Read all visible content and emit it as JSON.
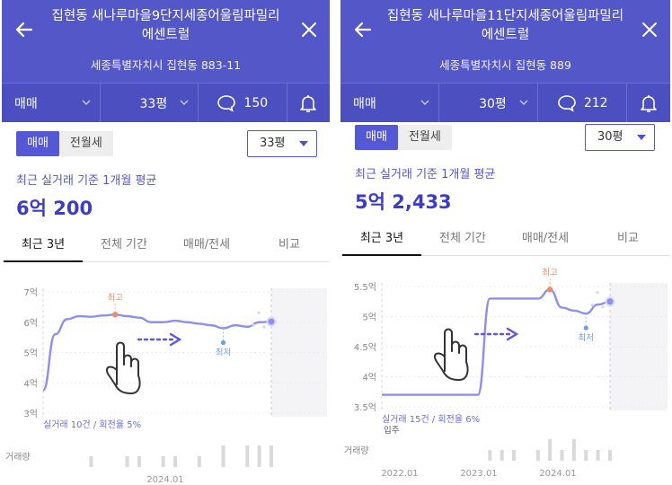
{
  "panels": [
    {
      "header": {
        "title_line1": "집현동 새나루마을9단지세종어울림파밀리",
        "title_line2": "에센트럴",
        "address": "세종특별자치시 집현동 883-11"
      },
      "filters": {
        "deal_type": "매매",
        "size": "33평",
        "comment_count": "150"
      },
      "segment": {
        "options": [
          "매매",
          "전월세"
        ],
        "selected": "매매"
      },
      "size_select": "33평",
      "average": {
        "label": "최근 실거래 기준 1개월 평균",
        "price": "6억 200"
      },
      "tabs": [
        "최근 3년",
        "전체 기간",
        "매매/전세",
        "비교"
      ],
      "active_tab": "최근 3년",
      "chart_data": {
        "type": "line",
        "y_ticks": [
          "7억",
          "6억",
          "5억",
          "4억",
          "3억"
        ],
        "ylim": [
          3,
          7
        ],
        "x_ticks": [
          "2024.01"
        ],
        "series": [
          {
            "values": [
              3.75,
              5.6,
              6.1,
              6.2,
              6.18,
              6.22,
              6.25,
              6.2,
              6.15,
              6.0,
              6.0,
              6.05,
              6.0,
              5.95,
              5.9,
              5.8,
              5.9,
              5.85,
              6.0,
              6.02
            ]
          }
        ],
        "high_label": "최고",
        "low_label": "최저",
        "trade_note": "실거래 10건 / 회전율 5%",
        "volume_label": "거래량",
        "volume": [
          0,
          0,
          0,
          0,
          1,
          0,
          0,
          1,
          1,
          0,
          1,
          1,
          0,
          1,
          0,
          2,
          0,
          2,
          2,
          2
        ]
      }
    },
    {
      "header": {
        "title_line1": "집현동 새나루마을11단지세종어울림파밀리",
        "title_line2": "에센트럴",
        "address": "세종특별자치시 집현동 889"
      },
      "filters": {
        "deal_type": "매매",
        "size": "30평",
        "comment_count": "212"
      },
      "segment": {
        "options": [
          "매매",
          "전월세"
        ],
        "selected": "매매"
      },
      "size_select": "30평",
      "average": {
        "label": "최근 실거래 기준 1개월 평균",
        "price": "5억 2,433"
      },
      "tabs": [
        "최근 3년",
        "전체 기간",
        "매매/전세",
        "비교"
      ],
      "active_tab": "최근 3년",
      "chart_data": {
        "type": "line",
        "y_ticks": [
          "5.5억",
          "5억",
          "4.5억",
          "4억",
          "3.5억"
        ],
        "ylim": [
          3.5,
          5.5
        ],
        "x_ticks": [
          "2022.01",
          "2023.01",
          "2024.01"
        ],
        "series": [
          {
            "values": [
              3.7,
              3.7,
              3.7,
              3.7,
              3.7,
              3.7,
              3.7,
              3.7,
              3.7,
              5.3,
              5.3,
              5.3,
              5.3,
              5.3,
              5.45,
              5.15,
              5.1,
              5.05,
              5.2,
              5.25
            ]
          }
        ],
        "high_label": "최고",
        "low_label": "최저",
        "move_in_label": "입주",
        "trade_note": "실거래 15건 / 회전율 6%",
        "volume_label": "거래량",
        "volume": [
          0,
          0,
          0,
          0,
          0,
          0,
          0,
          0,
          0,
          1,
          1,
          1,
          0,
          1,
          2,
          1,
          2,
          1,
          1,
          1
        ]
      }
    }
  ]
}
